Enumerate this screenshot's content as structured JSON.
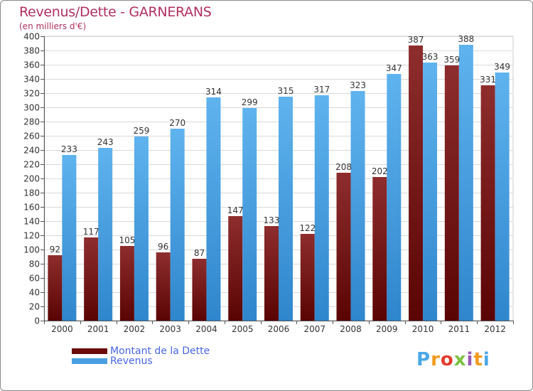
{
  "header": {
    "title": "Revenus/Dette - GARNERANS",
    "subtitle": "(en milliers d'€)"
  },
  "brand": {
    "text": "Proxiti",
    "colors": [
      "#4aa8e6",
      "#f29a1e",
      "#e23b2e",
      "#7cc242",
      "#9b59b6",
      "#f29a1e",
      "#4aa8e6"
    ]
  },
  "colors": {
    "dette": "#6b0a0a",
    "dette_light": "#8b2a2a",
    "revenus": "#4a9fe0",
    "revenus_light": "#6db8f0",
    "axis_text": "#333333",
    "grid": "#d9d9d9",
    "plot_bg": "#ffffff"
  },
  "chart_data": {
    "type": "bar",
    "title": "Revenus/Dette - GARNERANS",
    "subtitle": "(en milliers d'€)",
    "categories": [
      "2000",
      "2001",
      "2002",
      "2003",
      "2004",
      "2005",
      "2006",
      "2007",
      "2008",
      "2009",
      "2010",
      "2011",
      "2012"
    ],
    "series": [
      {
        "name": "Montant de la Dette",
        "values": [
          92,
          117,
          105,
          96,
          87,
          147,
          133,
          122,
          208,
          202,
          387,
          359,
          331
        ]
      },
      {
        "name": "Revenus",
        "values": [
          233,
          243,
          259,
          270,
          314,
          299,
          315,
          317,
          323,
          347,
          363,
          388,
          349
        ]
      }
    ],
    "ylim": [
      0,
      400
    ],
    "ytick_step": 20,
    "grid": true,
    "legend_position": "bottom-left"
  }
}
